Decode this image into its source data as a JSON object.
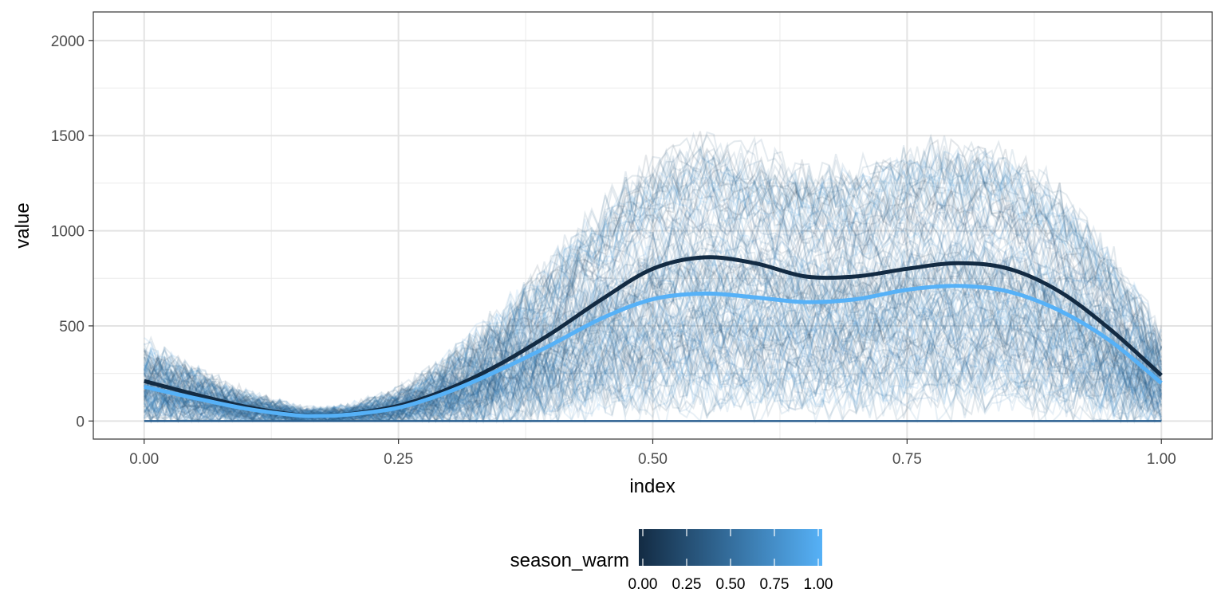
{
  "chart_data": {
    "type": "line",
    "xlabel": "index",
    "ylabel": "value",
    "xlim": [
      -0.05,
      1.05
    ],
    "ylim": [
      -95,
      2150
    ],
    "x_ticks": [
      0,
      0.25,
      0.5,
      0.75,
      1
    ],
    "x_tick_labels": [
      "0.00",
      "0.25",
      "0.50",
      "0.75",
      "1.00"
    ],
    "y_ticks": [
      0,
      500,
      1000,
      1500,
      2000
    ],
    "y_tick_labels": [
      "0",
      "500",
      "1000",
      "1500",
      "2000"
    ],
    "grid": true,
    "legend": {
      "title": "season_warm",
      "position": "bottom",
      "type": "colorbar",
      "range": [
        0,
        1
      ],
      "ticks": [
        0,
        0.25,
        0.5,
        0.75,
        1
      ],
      "tick_labels": [
        "0.00",
        "0.25",
        "0.50",
        "0.75",
        "1.00"
      ],
      "color_low": "#132b43",
      "color_high": "#56b1f7"
    },
    "raw_series": {
      "description_of_mark": "many individual noisy lines colored by season_warm",
      "line_alpha": 0.12
    },
    "series": [
      {
        "season_warm": 0,
        "color": "#132b43",
        "x": [
          0,
          0.05,
          0.1,
          0.15,
          0.175,
          0.2,
          0.25,
          0.3,
          0.35,
          0.4,
          0.45,
          0.5,
          0.55,
          0.6,
          0.65,
          0.7,
          0.75,
          0.8,
          0.85,
          0.9,
          0.95,
          1
        ],
        "y": [
          210,
          140,
          75,
          32,
          28,
          35,
          80,
          170,
          300,
          460,
          640,
          800,
          860,
          830,
          760,
          760,
          800,
          830,
          800,
          680,
          480,
          240
        ]
      },
      {
        "season_warm": 1,
        "color": "#56b1f7",
        "x": [
          0,
          0.05,
          0.1,
          0.15,
          0.175,
          0.2,
          0.25,
          0.3,
          0.35,
          0.4,
          0.45,
          0.5,
          0.55,
          0.6,
          0.65,
          0.7,
          0.75,
          0.8,
          0.85,
          0.9,
          0.95,
          1
        ],
        "y": [
          180,
          120,
          65,
          30,
          27,
          33,
          70,
          155,
          270,
          400,
          540,
          640,
          670,
          650,
          625,
          640,
          690,
          710,
          680,
          580,
          420,
          200
        ]
      }
    ]
  }
}
